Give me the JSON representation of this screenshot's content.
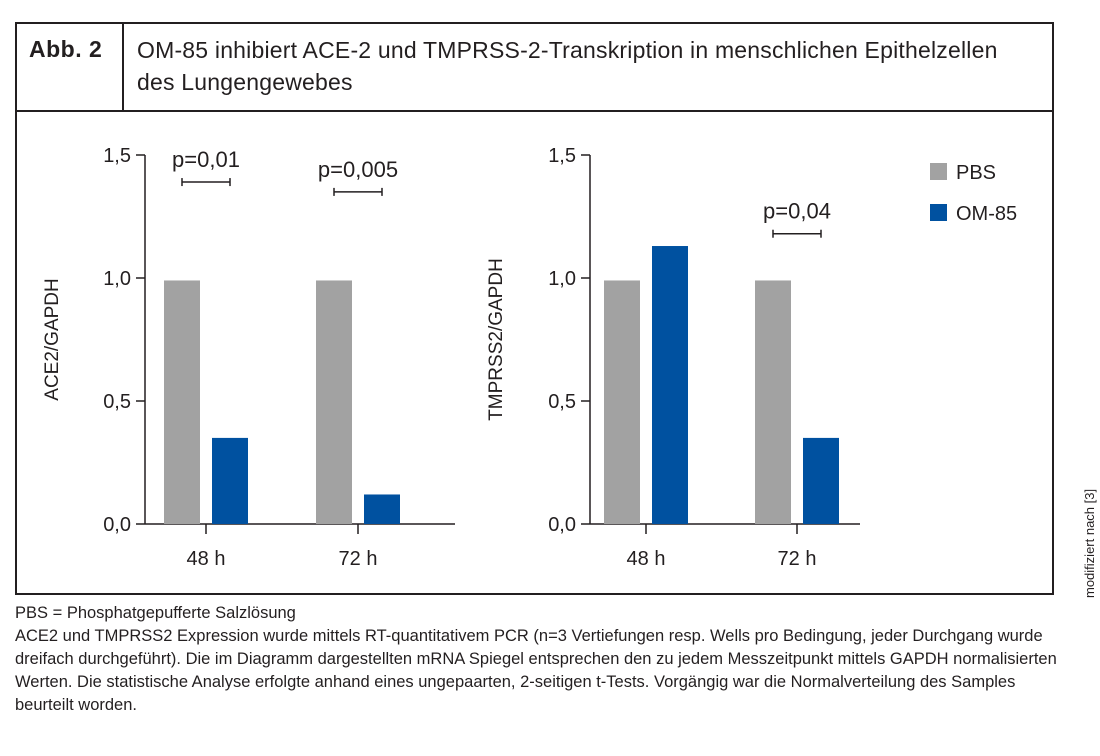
{
  "figure": {
    "label": "Abb. 2",
    "title": "OM-85 inhibiert ACE-2 und TMPRSS-2-Transkription in menschlichen Epithelzellen des Lungengewebes"
  },
  "side_note": "modifiziert nach [3]",
  "footnote": {
    "line1": "PBS = Phosphatgepufferte Salzlösung",
    "text": "ACE2 und TMPRSS2 Expression wurde mittels RT-quantitativem PCR (n=3 Vertiefungen resp. Wells pro Bedingung, jeder Durchgang wurde dreifach durchgeführt). Die im Diagramm dargestellten mRNA Spiegel entsprechen den zu jedem Messzeitpunkt mittels GAPDH normalisierten Werten. Die statistische Analyse erfolgte anhand eines ungepaarten, 2-seitigen t-Tests. Vorgängig war die Normalverteilung des Samples beurteilt worden."
  },
  "colors": {
    "PBS": "#a2a2a2",
    "OM-85": "#0051a0",
    "ink": "#231f20"
  },
  "legend": [
    {
      "name": "PBS",
      "color": "#a2a2a2"
    },
    {
      "name": "OM-85",
      "color": "#0051a0"
    }
  ],
  "chart_data": [
    {
      "type": "bar",
      "title": "",
      "xlabel": "",
      "ylabel": "ACE2/GAPDH",
      "ylim": [
        0,
        1.5
      ],
      "yticks": [
        0,
        0.5,
        1.0,
        1.5
      ],
      "ytick_labels": [
        "0,0",
        "0,5",
        "1,0",
        "1,5"
      ],
      "categories": [
        "48 h",
        "72 h"
      ],
      "series": [
        {
          "name": "PBS",
          "values": [
            0.99,
            0.99
          ]
        },
        {
          "name": "OM-85",
          "values": [
            0.35,
            0.12
          ]
        }
      ],
      "annotations": [
        {
          "category_index": 0,
          "text": "p=0,01",
          "y": 1.39
        },
        {
          "category_index": 1,
          "text": "p=0,005",
          "y": 1.35
        }
      ]
    },
    {
      "type": "bar",
      "title": "",
      "xlabel": "",
      "ylabel": "TMPRSS2/GAPDH",
      "ylim": [
        0,
        1.5
      ],
      "yticks": [
        0,
        0.5,
        1.0,
        1.5
      ],
      "ytick_labels": [
        "0,0",
        "0,5",
        "1,0",
        "1,5"
      ],
      "categories": [
        "48 h",
        "72 h"
      ],
      "series": [
        {
          "name": "PBS",
          "values": [
            0.99,
            0.99
          ]
        },
        {
          "name": "OM-85",
          "values": [
            1.13,
            0.35
          ]
        }
      ],
      "annotations": [
        {
          "category_index": 1,
          "text": "p=0,04",
          "y": 1.18
        }
      ]
    }
  ]
}
